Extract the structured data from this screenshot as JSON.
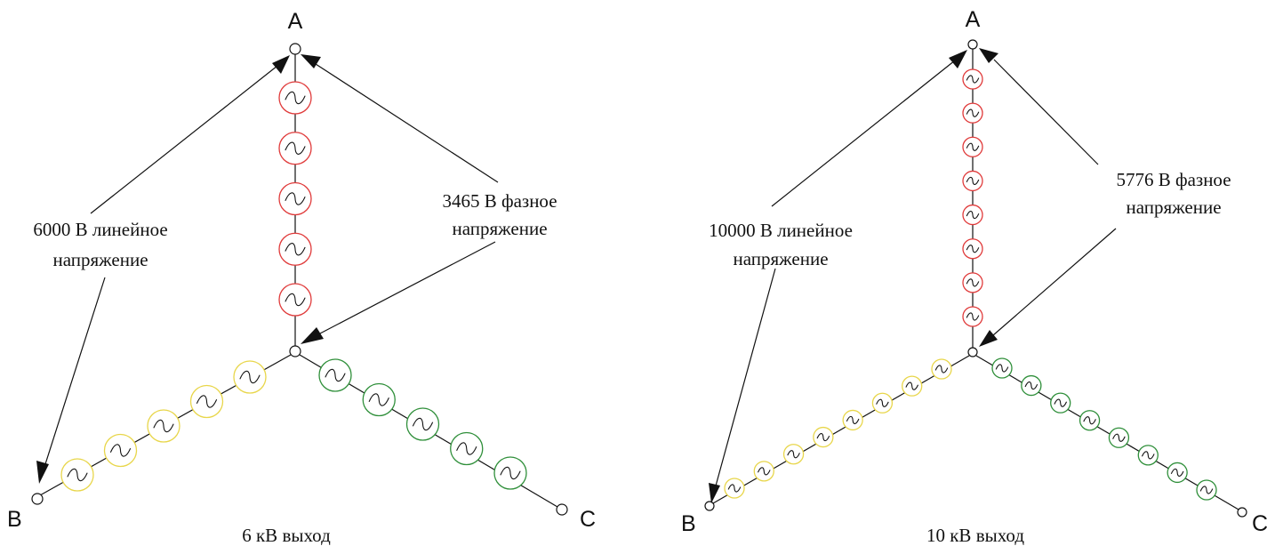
{
  "colors": {
    "phase_a": "#e03a3a",
    "phase_b": "#e8d64a",
    "phase_c": "#2f8f3a",
    "wire": "#111111"
  },
  "diagrams": [
    {
      "node_a_label": "A",
      "node_b_label": "B",
      "node_c_label": "C",
      "line_voltage_line1": "6000 В линейное",
      "line_voltage_line2": "напряжение",
      "phase_voltage_line1": "3465 В фазное",
      "phase_voltage_line2": "напряжение",
      "caption": "6 кВ выход",
      "sources_per_phase": 5
    },
    {
      "node_a_label": "A",
      "node_b_label": "B",
      "node_c_label": "C",
      "line_voltage_line1": "10000 В линейное",
      "line_voltage_line2": "напряжение",
      "phase_voltage_line1": "5776 В фазное",
      "phase_voltage_line2": "напряжение",
      "caption": "10 кВ выход",
      "sources_per_phase": 8
    }
  ]
}
